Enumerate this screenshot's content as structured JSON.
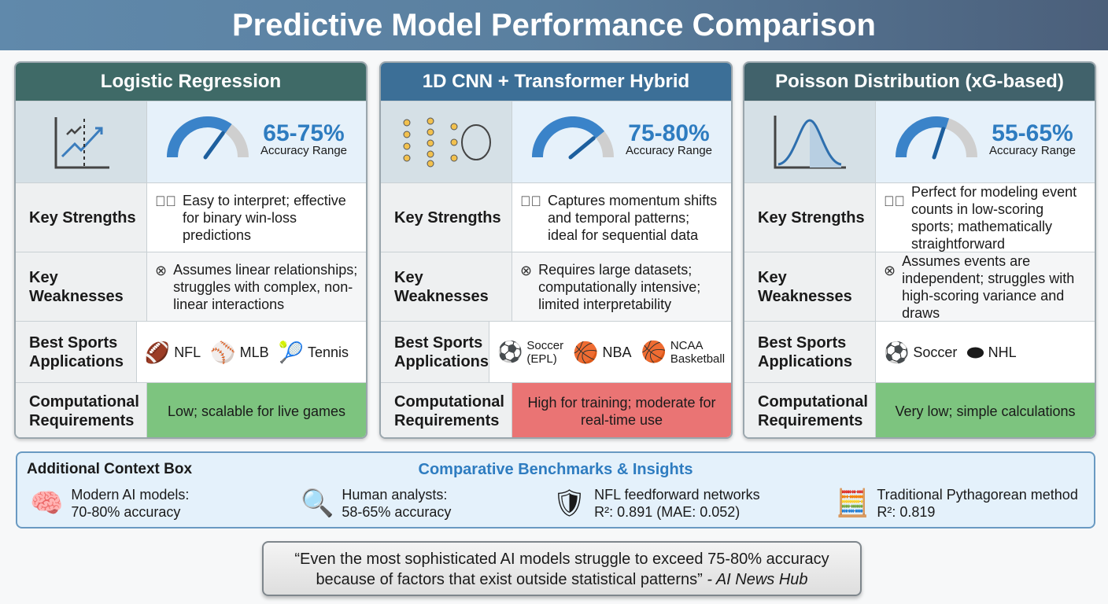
{
  "title": "Predictive Model Performance Comparison",
  "row_labels": {
    "strengths": "Key Strengths",
    "weaknesses": "Key Weaknesses",
    "sports": "Best Sports Applications",
    "compute": "Computational Requirements"
  },
  "accuracy_label": "Accuracy Range",
  "cards": [
    {
      "name": "Logistic Regression",
      "header_color": "#3f6a67",
      "icon": "line-chart-icon",
      "accuracy": "65-75%",
      "gauge_fraction": 0.7,
      "strengths": "Easy to interpret; effective for binary win-loss predictions",
      "weaknesses": "Assumes linear relationships; struggles with complex, non-linear interactions",
      "sports": [
        {
          "label": "NFL",
          "icon": "football-icon",
          "glyph": "🏈"
        },
        {
          "label": "MLB",
          "icon": "baseball-icon",
          "glyph": "⚾"
        },
        {
          "label": "Tennis",
          "icon": "tennis-icon",
          "glyph": "🎾"
        }
      ],
      "compute": "Low; scalable for live games",
      "compute_color": "#7dc47f"
    },
    {
      "name": "1D CNN + Transformer Hybrid",
      "header_color": "#3c6f97",
      "icon": "neural-network-icon",
      "accuracy": "75-80%",
      "gauge_fraction": 0.78,
      "strengths": "Captures momentum shifts and temporal patterns; ideal for sequential data",
      "weaknesses": "Requires large datasets; computationally intensive; limited interpretability",
      "sports": [
        {
          "label": "Soccer (EPL)",
          "icon": "soccer-ball-icon",
          "glyph": "⚽"
        },
        {
          "label": "NBA",
          "icon": "basketball-icon",
          "glyph": "🏀"
        },
        {
          "label": "NCAA Basketball",
          "icon": "basketball-icon",
          "glyph": "🏀"
        }
      ],
      "compute": "High for training; moderate for real-time use",
      "compute_color": "#ea7474"
    },
    {
      "name": "Poisson Distribution (xG-based)",
      "header_color": "#41626b",
      "icon": "distribution-curve-icon",
      "accuracy": "55-65%",
      "gauge_fraction": 0.6,
      "strengths": "Perfect for modeling event counts in low-scoring sports; mathematically straightforward",
      "weaknesses": "Assumes events are independent; struggles with high-scoring variance and draws",
      "sports": [
        {
          "label": "Soccer",
          "icon": "soccer-ball-icon",
          "glyph": "⚽"
        },
        {
          "label": "NHL",
          "icon": "hockey-puck-icon",
          "glyph": "⬬"
        }
      ],
      "compute": "Very low; simple calculations",
      "compute_color": "#7dc47f"
    }
  ],
  "context": {
    "title": "Additional Context Box",
    "heading": "Comparative Benchmarks & Insights",
    "items": [
      {
        "icon": "brain-gear-icon",
        "glyph": "🧠",
        "line1": "Modern AI models:",
        "line2": "70-80% accuracy"
      },
      {
        "icon": "head-magnifier-icon",
        "glyph": "🔍",
        "line1": "Human analysts:",
        "line2": "58-65% accuracy"
      },
      {
        "icon": "nfl-shield-icon",
        "glyph": "🛡",
        "line1": "NFL feedforward networks",
        "line2": "R²: 0.891 (MAE: 0.052)"
      },
      {
        "icon": "calculator-icon",
        "glyph": "🧮",
        "line1": "Traditional Pythagorean method",
        "line2": "R²: 0.819"
      }
    ]
  },
  "quote": {
    "text": "“Even the most sophisticated AI models struggle to exceed 75-80% accuracy because of factors that exist outside statistical patterns”",
    "source": "- AI News Hub"
  }
}
